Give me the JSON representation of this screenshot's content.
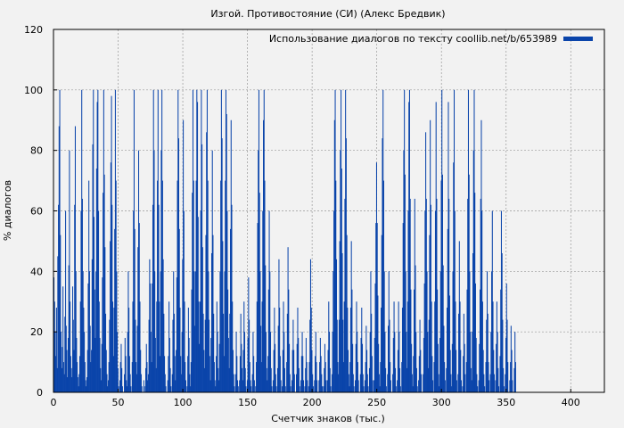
{
  "chart_data": {
    "type": "bar",
    "title": "Изгой. Противостояние (СИ) (Алекс Бредвик)",
    "xlabel": "Счетчик знаков (тыс.)",
    "ylabel": "% диалогов",
    "xlim": [
      0,
      426
    ],
    "ylim": [
      0,
      120
    ],
    "xticks": [
      "0",
      "50",
      "100",
      "150",
      "200",
      "250",
      "300",
      "350",
      "400"
    ],
    "yticks": [
      "0",
      "20",
      "40",
      "60",
      "80",
      "100",
      "120"
    ],
    "grid": true,
    "legend_position": "top-right",
    "series": [
      {
        "name": "Использование диалогов по тексту coollib.net/b/653989",
        "color": "#0a44aa",
        "x_start": 0,
        "x_step": 0.5,
        "values": [
          38,
          30,
          20,
          12,
          28,
          8,
          45,
          62,
          88,
          100,
          52,
          20,
          8,
          15,
          35,
          10,
          6,
          25,
          60,
          22,
          14,
          5,
          18,
          42,
          80,
          30,
          12,
          8,
          5,
          35,
          24,
          14,
          62,
          88,
          40,
          18,
          10,
          5,
          2,
          6,
          12,
          30,
          60,
          100,
          64,
          40,
          28,
          20,
          10,
          4,
          2,
          5,
          14,
          36,
          70,
          40,
          22,
          10,
          14,
          44,
          82,
          100,
          58,
          34,
          18,
          40,
          74,
          96,
          100,
          60,
          30,
          18,
          8,
          4,
          16,
          38,
          66,
          100,
          72,
          48,
          26,
          14,
          6,
          2,
          4,
          10,
          24,
          50,
          76,
          98,
          62,
          30,
          12,
          28,
          54,
          100,
          70,
          40,
          20,
          8,
          2,
          0,
          4,
          10,
          16,
          8,
          2,
          0,
          0,
          6,
          18,
          12,
          4,
          2,
          20,
          40,
          28,
          12,
          6,
          2,
          0,
          10,
          30,
          60,
          100,
          54,
          24,
          10,
          6,
          22,
          48,
          80,
          56,
          30,
          14,
          6,
          2,
          0,
          0,
          4,
          2,
          0,
          8,
          16,
          10,
          4,
          6,
          24,
          44,
          36,
          20,
          10,
          36,
          62,
          100,
          80,
          40,
          18,
          8,
          30,
          70,
          100,
          62,
          30,
          12,
          40,
          80,
          100,
          70,
          44,
          26,
          12,
          6,
          2,
          0,
          0,
          4,
          12,
          30,
          18,
          8,
          2,
          0,
          6,
          24,
          40,
          26,
          12,
          4,
          14,
          38,
          70,
          100,
          84,
          54,
          28,
          12,
          6,
          20,
          44,
          90,
          60,
          30,
          10,
          4,
          0,
          2,
          12,
          28,
          18,
          6,
          2,
          10,
          34,
          66,
          100,
          70,
          40,
          22,
          40,
          70,
          100,
          96,
          58,
          30,
          16,
          30,
          60,
          100,
          82,
          48,
          26,
          14,
          8,
          24,
          52,
          86,
          100,
          70,
          40,
          24,
          12,
          4,
          18,
          46,
          80,
          52,
          26,
          10,
          4,
          2,
          12,
          30,
          20,
          8,
          4,
          16,
          40,
          70,
          100,
          84,
          50,
          26,
          12,
          40,
          70,
          100,
          92,
          60,
          34,
          18,
          8,
          26,
          54,
          90,
          62,
          30,
          14,
          6,
          2,
          0,
          6,
          20,
          12,
          4,
          2,
          0,
          4,
          12,
          26,
          16,
          8,
          4,
          14,
          30,
          20,
          8,
          2,
          0,
          4,
          18,
          38,
          24,
          10,
          4,
          2,
          0,
          6,
          20,
          12,
          4,
          0,
          2,
          10,
          30,
          56,
          80,
          100,
          66,
          40,
          22,
          10,
          30,
          60,
          90,
          100,
          70,
          42,
          20,
          8,
          4,
          12,
          34,
          60,
          40,
          20,
          8,
          2,
          0,
          4,
          14,
          28,
          16,
          6,
          2,
          0,
          8,
          22,
          44,
          28,
          12,
          4,
          0,
          2,
          14,
          30,
          20,
          8,
          2,
          0,
          10,
          26,
          48,
          34,
          16,
          6,
          2,
          0,
          4,
          14,
          24,
          14,
          6,
          0,
          0,
          6,
          16,
          28,
          18,
          8,
          2,
          0,
          4,
          12,
          20,
          12,
          4,
          0,
          2,
          8,
          18,
          10,
          4,
          0,
          2,
          10,
          24,
          44,
          28,
          14,
          6,
          2,
          0,
          4,
          12,
          20,
          10,
          4,
          0,
          0,
          4,
          10,
          18,
          12,
          6,
          2,
          0,
          2,
          8,
          16,
          10,
          4,
          0,
          4,
          14,
          30,
          20,
          8,
          2,
          0,
          6,
          20,
          40,
          60,
          90,
          100,
          70,
          44,
          24,
          10,
          6,
          24,
          50,
          80,
          100,
          74,
          46,
          24,
          10,
          30,
          64,
          100,
          84,
          52,
          28,
          14,
          6,
          2,
          10,
          28,
          50,
          34,
          16,
          6,
          2,
          0,
          4,
          16,
          30,
          20,
          10,
          4,
          0,
          0,
          6,
          18,
          28,
          16,
          6,
          2,
          0,
          4,
          10,
          22,
          14,
          6,
          2,
          0,
          8,
          20,
          40,
          26,
          12,
          4,
          0,
          4,
          18,
          36,
          56,
          76,
          56,
          32,
          16,
          6,
          2,
          10,
          28,
          52,
          84,
          100,
          70,
          40,
          20,
          8,
          2,
          0,
          6,
          22,
          40,
          24,
          10,
          4,
          0,
          0,
          6,
          18,
          30,
          20,
          8,
          2,
          0,
          4,
          14,
          30,
          20,
          8,
          2,
          0,
          10,
          28,
          56,
          80,
          100,
          72,
          40,
          20,
          8,
          30,
          60,
          96,
          100,
          64,
          34,
          16,
          6,
          2,
          12,
          34,
          64,
          42,
          20,
          8,
          2,
          0,
          4,
          12,
          24,
          14,
          6,
          0,
          0,
          6,
          18,
          36,
          60,
          86,
          64,
          40,
          20,
          8,
          24,
          52,
          90,
          62,
          30,
          12,
          4,
          0,
          10,
          30,
          60,
          96,
          64,
          34,
          16,
          6,
          2,
          18,
          40,
          70,
          100,
          72,
          42,
          22,
          10,
          4,
          0,
          8,
          28,
          54,
          96,
          64,
          32,
          14,
          6,
          2,
          16,
          40,
          76,
          100,
          60,
          30,
          14,
          4,
          0,
          6,
          26,
          50,
          30,
          14,
          4,
          0,
          2,
          12,
          26,
          16,
          6,
          0,
          10,
          34,
          64,
          100,
          72,
          40,
          20,
          8,
          4,
          20,
          46,
          80,
          100,
          66,
          36,
          18,
          6,
          2,
          0,
          4,
          16,
          34,
          64,
          90,
          60,
          30,
          14,
          6,
          2,
          0,
          10,
          24,
          40,
          26,
          10,
          4,
          0,
          6,
          20,
          40,
          60,
          30,
          14,
          6,
          0,
          4,
          16,
          30,
          20,
          8,
          2,
          0,
          12,
          34,
          60,
          46,
          24,
          8,
          2,
          0,
          6,
          18,
          36,
          24,
          10,
          0,
          0,
          4,
          10,
          22,
          14,
          4,
          0,
          0,
          8,
          20,
          10
        ]
      }
    ]
  }
}
